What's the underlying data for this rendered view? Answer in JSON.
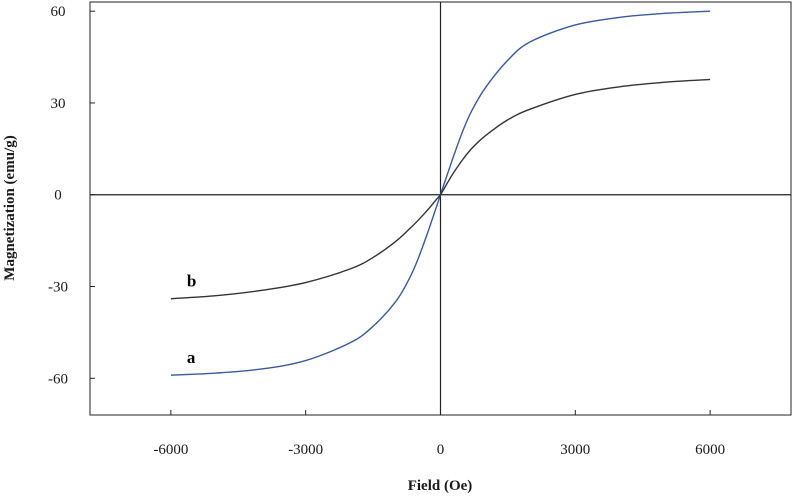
{
  "chart_data": {
    "type": "line",
    "title": "",
    "xlabel": "Field (Oe)",
    "ylabel": "Magnetization (emu/g)",
    "xlim": [
      -7800,
      7800
    ],
    "ylim": [
      -72,
      63
    ],
    "xticks": [
      -6000,
      -3000,
      0,
      3000,
      6000
    ],
    "yticks": [
      -60,
      -30,
      0,
      30,
      60
    ],
    "xtick_labels": [
      "-6000",
      "-3000",
      "0",
      "3000",
      "6000"
    ],
    "ytick_labels": [
      "-60",
      "-30",
      "0",
      "30",
      "60"
    ],
    "grid": false,
    "legend": "none",
    "series": [
      {
        "name": "a",
        "color": "#3a5a9a",
        "x": [
          -6000,
          -5000,
          -4000,
          -3000,
          -2000,
          -1500,
          -1000,
          -700,
          -500,
          -300,
          -200,
          -100,
          0,
          100,
          200,
          300,
          500,
          700,
          1000,
          1500,
          2000,
          3000,
          4000,
          5000,
          6000
        ],
        "y": [
          -59,
          -58.3,
          -57,
          -54.2,
          -48.3,
          -43,
          -35,
          -27.6,
          -21,
          -13,
          -8.7,
          -4.4,
          0,
          4.4,
          8.7,
          13,
          21,
          27.6,
          35,
          44,
          50,
          55.5,
          58,
          59.3,
          60
        ]
      },
      {
        "name": "b",
        "color": "#333333",
        "x": [
          -6000,
          -5000,
          -4000,
          -3000,
          -2000,
          -1500,
          -1000,
          -700,
          -500,
          -300,
          -200,
          -100,
          0,
          100,
          200,
          300,
          500,
          700,
          1000,
          1500,
          2000,
          3000,
          4000,
          5000,
          6000
        ],
        "y": [
          -34,
          -33,
          -31.3,
          -28.7,
          -24.2,
          -20.5,
          -15.3,
          -11.3,
          -8.4,
          -5.2,
          -3.5,
          -1.7,
          0,
          2.5,
          5,
          7.4,
          11.6,
          15.2,
          19.3,
          24.5,
          28,
          32.8,
          35.3,
          36.8,
          37.7
        ]
      }
    ]
  }
}
